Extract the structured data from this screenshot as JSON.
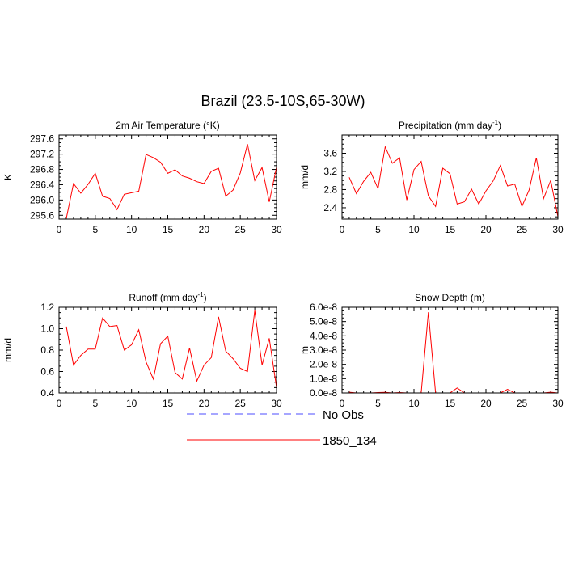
{
  "figure": {
    "title": "Brazil (23.5-10S,65-30W)"
  },
  "legend": {
    "entries": [
      {
        "label": "No Obs",
        "color": "#4d4dff",
        "style": "dashed"
      },
      {
        "label": "1850_134",
        "color": "#ff0000",
        "style": "solid"
      }
    ]
  },
  "chart_data": [
    {
      "type": "line",
      "title": "2m Air Temperature (°K)",
      "xlabel": "",
      "ylabel": "K",
      "xlim": [
        0,
        30
      ],
      "ylim": [
        295.5,
        297.7
      ],
      "xticks": [
        0,
        5,
        10,
        15,
        20,
        25,
        30
      ],
      "yticks": [
        295.6,
        296.0,
        296.4,
        296.8,
        297.2,
        297.6
      ],
      "ytick_labels": [
        "295.6",
        "296.0",
        "296.4",
        "296.8",
        "297.2",
        "297.6"
      ],
      "series": [
        {
          "name": "1850_134",
          "color": "#ff0000",
          "x": [
            1,
            2,
            3,
            4,
            5,
            6,
            7,
            8,
            9,
            10,
            11,
            12,
            13,
            14,
            15,
            16,
            17,
            18,
            19,
            20,
            21,
            22,
            23,
            24,
            25,
            26,
            27,
            28,
            29,
            30
          ],
          "y": [
            295.52,
            296.43,
            296.18,
            296.41,
            296.7,
            296.1,
            296.04,
            295.75,
            296.15,
            296.19,
            296.23,
            297.19,
            297.11,
            296.99,
            296.7,
            296.79,
            296.63,
            296.57,
            296.48,
            296.43,
            296.75,
            296.83,
            296.1,
            296.26,
            296.71,
            297.46,
            296.51,
            296.85,
            295.95,
            296.86
          ]
        }
      ]
    },
    {
      "type": "line",
      "title": "Precipitation (mm day-1)",
      "xlabel": "",
      "ylabel": "mm/d",
      "xlim": [
        0,
        30
      ],
      "ylim": [
        2.15,
        4.0
      ],
      "xticks": [
        0,
        5,
        10,
        15,
        20,
        25,
        30
      ],
      "yticks": [
        2.4,
        2.8,
        3.2,
        3.6
      ],
      "ytick_labels": [
        "2.4",
        "2.8",
        "3.2",
        "3.6"
      ],
      "series": [
        {
          "name": "1850_134",
          "color": "#ff0000",
          "x": [
            1,
            2,
            3,
            4,
            5,
            6,
            7,
            8,
            9,
            10,
            11,
            12,
            13,
            14,
            15,
            16,
            17,
            18,
            19,
            20,
            21,
            22,
            23,
            24,
            25,
            26,
            27,
            28,
            29,
            30
          ],
          "y": [
            3.07,
            2.71,
            2.98,
            3.18,
            2.82,
            3.74,
            3.38,
            3.5,
            2.57,
            3.24,
            3.42,
            2.66,
            2.43,
            3.27,
            3.15,
            2.48,
            2.53,
            2.81,
            2.48,
            2.77,
            2.99,
            3.33,
            2.88,
            2.92,
            2.43,
            2.79,
            3.5,
            2.6,
            3.0,
            2.2
          ]
        }
      ]
    },
    {
      "type": "line",
      "title": "Runoff (mm day-1)",
      "xlabel": "",
      "ylabel": "mm/d",
      "xlim": [
        0,
        30
      ],
      "ylim": [
        0.4,
        1.2
      ],
      "xticks": [
        0,
        5,
        10,
        15,
        20,
        25,
        30
      ],
      "yticks": [
        0.4,
        0.6,
        0.8,
        1.0,
        1.2
      ],
      "ytick_labels": [
        "0.4",
        "0.6",
        "0.8",
        "1.0",
        "1.2"
      ],
      "series": [
        {
          "name": "1850_134",
          "color": "#ff0000",
          "x": [
            1,
            2,
            3,
            4,
            5,
            6,
            7,
            8,
            9,
            10,
            11,
            12,
            13,
            14,
            15,
            16,
            17,
            18,
            19,
            20,
            21,
            22,
            23,
            24,
            25,
            26,
            27,
            28,
            29,
            30
          ],
          "y": [
            1.02,
            0.66,
            0.75,
            0.81,
            0.81,
            1.1,
            1.02,
            1.03,
            0.8,
            0.85,
            0.99,
            0.69,
            0.53,
            0.86,
            0.93,
            0.59,
            0.53,
            0.82,
            0.51,
            0.66,
            0.73,
            1.11,
            0.79,
            0.72,
            0.63,
            0.6,
            1.17,
            0.66,
            0.91,
            0.45
          ]
        }
      ]
    },
    {
      "type": "line",
      "title": "Snow Depth (m)",
      "xlabel": "",
      "ylabel": "m",
      "xlim": [
        0,
        30
      ],
      "ylim": [
        0,
        6e-08
      ],
      "xticks": [
        0,
        5,
        10,
        15,
        20,
        25,
        30
      ],
      "yticks": [
        0,
        1e-08,
        2e-08,
        3e-08,
        4e-08,
        5e-08,
        6e-08
      ],
      "ytick_labels": [
        "0.0e-8",
        "1.0e-8",
        "2.0e-8",
        "3.0e-8",
        "4.0e-8",
        "5.0e-8",
        "6.0e-8"
      ],
      "series": [
        {
          "name": "1850_134",
          "color": "#ff0000",
          "x": [
            1,
            2,
            3,
            4,
            5,
            6,
            7,
            8,
            9,
            10,
            11,
            12,
            13,
            14,
            15,
            16,
            17,
            18,
            19,
            20,
            21,
            22,
            23,
            24,
            25,
            26,
            27,
            28,
            29,
            30
          ],
          "y": [
            5e-10,
            0,
            0,
            0,
            3e-10,
            4e-10,
            0,
            3e-10,
            0,
            0,
            0,
            5.65e-08,
            0,
            0,
            0,
            3.5e-09,
            0,
            0,
            0,
            0,
            0,
            0,
            2.5e-09,
            0,
            0,
            0,
            0,
            0,
            5e-10,
            0
          ]
        }
      ]
    }
  ]
}
